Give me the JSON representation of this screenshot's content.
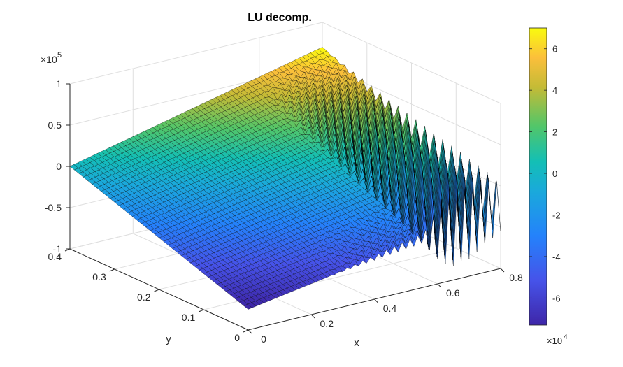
{
  "chart_data": {
    "type": "surface",
    "title": "LU decomp.",
    "xlabel": "x",
    "ylabel": "y",
    "zlabel": "",
    "xlim": [
      0,
      0.8
    ],
    "ylim": [
      0,
      0.4
    ],
    "zlim": [
      -100000,
      100000
    ],
    "x_ticks": [
      "0",
      "0.2",
      "0.4",
      "0.6",
      "0.8"
    ],
    "y_ticks": [
      "0",
      "0.1",
      "0.2",
      "0.3",
      "0.4"
    ],
    "z_ticks": [
      "-1",
      "-0.5",
      "0",
      "0.5",
      "1"
    ],
    "z_exponent": {
      "base": "×10",
      "power": "5"
    },
    "grid": true,
    "surface": {
      "description_values": {
        "plane_z_at_x0_y04": 0,
        "plane_z_at_x0_y0": -75000,
        "plane_z_at_x08_y0": -25000,
        "plane_z_at_x08_y04": 70000
      },
      "oscillation": {
        "x_start": 0.55,
        "x_end": 0.8,
        "max_amplitude": 75000,
        "sign_alternates": true
      }
    },
    "colorbar": {
      "ticks": [
        "-6",
        "-4",
        "-2",
        "0",
        "2",
        "4",
        "6"
      ],
      "tick_values": [
        -60000,
        -40000,
        -20000,
        0,
        20000,
        40000,
        60000
      ],
      "range": [
        -73000,
        70000
      ],
      "exponent": {
        "base": "×10",
        "power": "4"
      },
      "colormap": "parula"
    }
  }
}
